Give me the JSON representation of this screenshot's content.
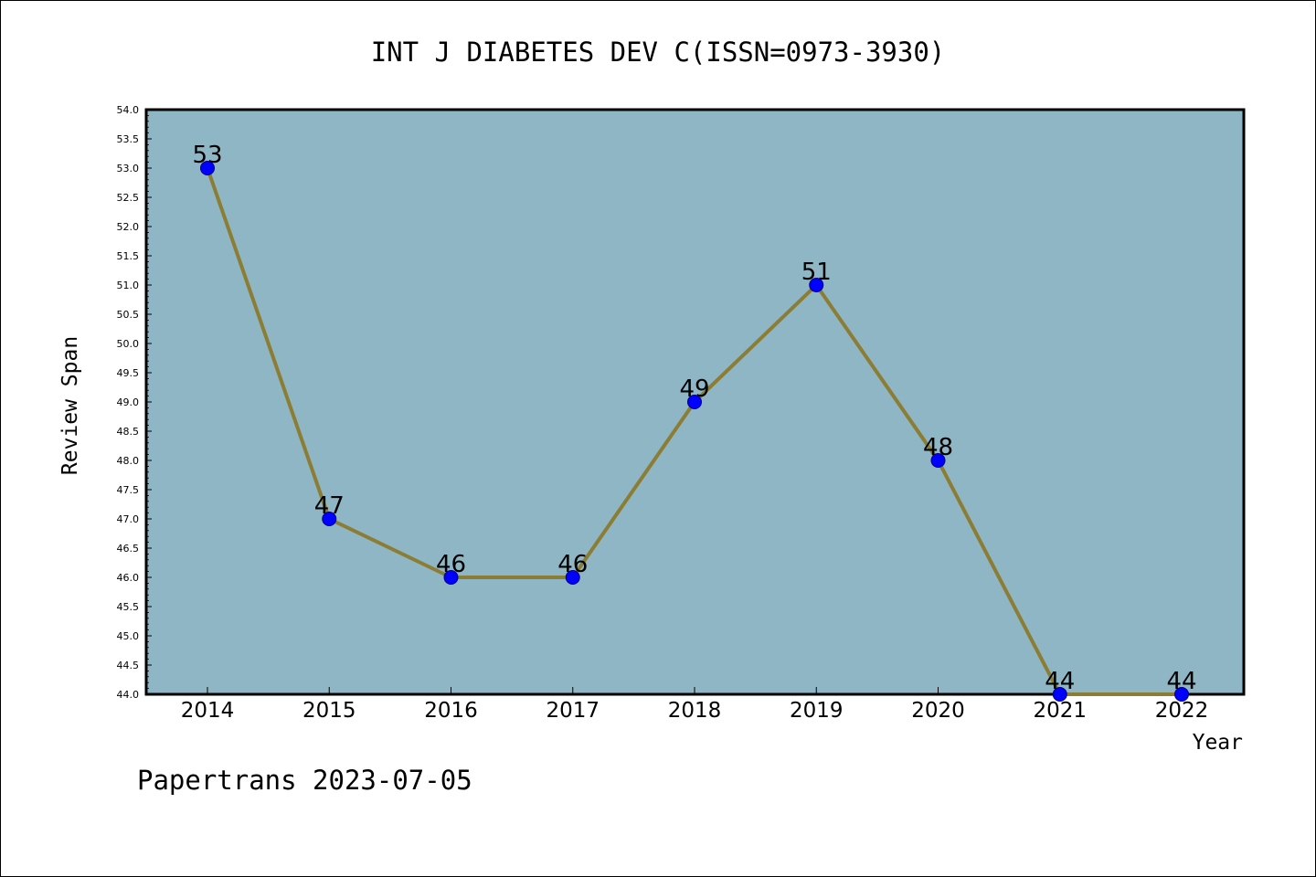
{
  "chart_data": {
    "type": "line",
    "title": "INT J DIABETES DEV C(ISSN=0973-3930)",
    "xlabel": "Year",
    "ylabel": "Review Span",
    "categories": [
      "2014",
      "2015",
      "2016",
      "2017",
      "2018",
      "2019",
      "2020",
      "2021",
      "2022"
    ],
    "values": [
      53,
      47,
      46,
      46,
      49,
      51,
      48,
      44,
      44
    ],
    "data_labels": [
      "53",
      "47",
      "46",
      "46",
      "49",
      "51",
      "48",
      "44",
      "44"
    ],
    "ylim": [
      44.0,
      54.0
    ],
    "y_ticks": [
      "44.0",
      "44.5",
      "45.0",
      "45.5",
      "46.0",
      "46.5",
      "47.0",
      "47.5",
      "48.0",
      "48.5",
      "49.0",
      "49.5",
      "50.0",
      "50.5",
      "51.0",
      "51.5",
      "52.0",
      "52.5",
      "53.0",
      "53.5",
      "54.0"
    ],
    "grid": false,
    "legend": "none",
    "footer": "Papertrans 2023-07-05",
    "colors": {
      "plot_background": "#8eb6c4",
      "line": "#8c7d34",
      "marker": "#0000ff",
      "marker_edge": "#000080"
    }
  }
}
